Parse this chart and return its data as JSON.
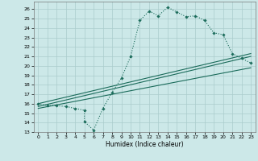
{
  "xlabel": "Humidex (Indice chaleur)",
  "xlim": [
    -0.5,
    23.5
  ],
  "ylim": [
    13,
    26.8
  ],
  "yticks": [
    13,
    14,
    15,
    16,
    17,
    18,
    19,
    20,
    21,
    22,
    23,
    24,
    25,
    26
  ],
  "xticks": [
    0,
    1,
    2,
    3,
    4,
    5,
    6,
    7,
    8,
    9,
    10,
    11,
    12,
    13,
    14,
    15,
    16,
    17,
    18,
    19,
    20,
    21,
    22,
    23
  ],
  "bg_color": "#cce8e8",
  "grid_color": "#aacccc",
  "line_color": "#1a6b5a",
  "series1_x": [
    0,
    1,
    2,
    3,
    4,
    5,
    5,
    6,
    7,
    8,
    9,
    10,
    11,
    12,
    13,
    14,
    15,
    16,
    17,
    18,
    19,
    20,
    21,
    22,
    23
  ],
  "series1_y": [
    16.0,
    15.8,
    15.8,
    15.7,
    15.5,
    15.3,
    14.1,
    13.2,
    15.5,
    17.2,
    18.7,
    21.0,
    24.8,
    25.8,
    25.3,
    26.2,
    25.7,
    25.2,
    25.3,
    24.8,
    23.5,
    23.3,
    21.3,
    20.8,
    20.3
  ],
  "series2_x": [
    0,
    23
  ],
  "series2_y": [
    15.5,
    19.8
  ],
  "series3_x": [
    0,
    23
  ],
  "series3_y": [
    16.0,
    21.3
  ],
  "series4_x": [
    0,
    23
  ],
  "series4_y": [
    15.7,
    21.0
  ]
}
